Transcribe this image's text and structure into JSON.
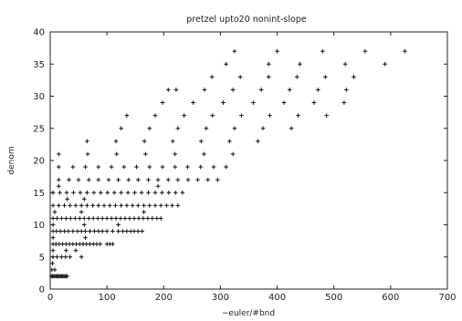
{
  "chart_data": {
    "type": "scatter",
    "title": "pretzel upto20 nonint-slope",
    "xlabel": "−euler/#bnd",
    "ylabel": "denom",
    "xlim": [
      0,
      700
    ],
    "ylim": [
      0,
      40
    ],
    "xticks": [
      0,
      100,
      200,
      300,
      400,
      500,
      600,
      700
    ],
    "yticks": [
      0,
      5,
      10,
      15,
      20,
      25,
      30,
      35,
      40
    ],
    "xtick_labels": [
      "0",
      "100",
      "200",
      "300",
      "400",
      "500",
      "600",
      "700"
    ],
    "ytick_labels": [
      "0",
      "5",
      "10",
      "15",
      "20",
      "25",
      "30",
      "35",
      "40"
    ],
    "marker": "+",
    "grid": false,
    "series": [
      {
        "points": [
          [
            2,
            2
          ],
          [
            4,
            2
          ],
          [
            6,
            2
          ],
          [
            8,
            2
          ],
          [
            10,
            2
          ],
          [
            12,
            2
          ],
          [
            14,
            2
          ],
          [
            16,
            2
          ],
          [
            18,
            2
          ],
          [
            20,
            2
          ],
          [
            22,
            2
          ],
          [
            24,
            2
          ],
          [
            26,
            2
          ],
          [
            28,
            2
          ],
          [
            30,
            2
          ],
          [
            3,
            3
          ],
          [
            8,
            3
          ],
          [
            4,
            4
          ],
          [
            5,
            5
          ],
          [
            12,
            5
          ],
          [
            20,
            5
          ],
          [
            27,
            5
          ],
          [
            35,
            5
          ],
          [
            55,
            5
          ],
          [
            5,
            6
          ],
          [
            28,
            6
          ],
          [
            45,
            6
          ],
          [
            5,
            7
          ],
          [
            10,
            7
          ],
          [
            16,
            7
          ],
          [
            22,
            7
          ],
          [
            28,
            7
          ],
          [
            34,
            7
          ],
          [
            40,
            7
          ],
          [
            46,
            7
          ],
          [
            52,
            7
          ],
          [
            58,
            7
          ],
          [
            64,
            7
          ],
          [
            70,
            7
          ],
          [
            76,
            7
          ],
          [
            82,
            7
          ],
          [
            88,
            7
          ],
          [
            100,
            7
          ],
          [
            105,
            7
          ],
          [
            110,
            7
          ],
          [
            5,
            8
          ],
          [
            62,
            8
          ],
          [
            5,
            9
          ],
          [
            11,
            9
          ],
          [
            18,
            9
          ],
          [
            25,
            9
          ],
          [
            32,
            9
          ],
          [
            40,
            9
          ],
          [
            48,
            9
          ],
          [
            55,
            9
          ],
          [
            62,
            9
          ],
          [
            70,
            9
          ],
          [
            78,
            9
          ],
          [
            85,
            9
          ],
          [
            92,
            9
          ],
          [
            100,
            9
          ],
          [
            110,
            9
          ],
          [
            120,
            9
          ],
          [
            128,
            9
          ],
          [
            135,
            9
          ],
          [
            142,
            9
          ],
          [
            148,
            9
          ],
          [
            155,
            9
          ],
          [
            162,
            9
          ],
          [
            5,
            10
          ],
          [
            60,
            10
          ],
          [
            120,
            10
          ],
          [
            5,
            11
          ],
          [
            12,
            11
          ],
          [
            20,
            11
          ],
          [
            28,
            11
          ],
          [
            36,
            11
          ],
          [
            44,
            11
          ],
          [
            52,
            11
          ],
          [
            60,
            11
          ],
          [
            68,
            11
          ],
          [
            76,
            11
          ],
          [
            84,
            11
          ],
          [
            92,
            11
          ],
          [
            100,
            11
          ],
          [
            108,
            11
          ],
          [
            116,
            11
          ],
          [
            124,
            11
          ],
          [
            132,
            11
          ],
          [
            140,
            11
          ],
          [
            148,
            11
          ],
          [
            156,
            11
          ],
          [
            164,
            11
          ],
          [
            172,
            11
          ],
          [
            180,
            11
          ],
          [
            188,
            11
          ],
          [
            195,
            11
          ],
          [
            8,
            12
          ],
          [
            55,
            12
          ],
          [
            165,
            12
          ],
          [
            5,
            13
          ],
          [
            15,
            13
          ],
          [
            25,
            13
          ],
          [
            35,
            13
          ],
          [
            45,
            13
          ],
          [
            55,
            13
          ],
          [
            65,
            13
          ],
          [
            75,
            13
          ],
          [
            85,
            13
          ],
          [
            95,
            13
          ],
          [
            105,
            13
          ],
          [
            115,
            13
          ],
          [
            125,
            13
          ],
          [
            135,
            13
          ],
          [
            145,
            13
          ],
          [
            155,
            13
          ],
          [
            165,
            13
          ],
          [
            175,
            13
          ],
          [
            185,
            13
          ],
          [
            195,
            13
          ],
          [
            205,
            13
          ],
          [
            215,
            13
          ],
          [
            225,
            13
          ],
          [
            30,
            14
          ],
          [
            60,
            14
          ],
          [
            5,
            15
          ],
          [
            17,
            15
          ],
          [
            29,
            15
          ],
          [
            41,
            15
          ],
          [
            53,
            15
          ],
          [
            65,
            15
          ],
          [
            77,
            15
          ],
          [
            89,
            15
          ],
          [
            101,
            15
          ],
          [
            113,
            15
          ],
          [
            125,
            15
          ],
          [
            137,
            15
          ],
          [
            149,
            15
          ],
          [
            161,
            15
          ],
          [
            173,
            15
          ],
          [
            185,
            15
          ],
          [
            197,
            15
          ],
          [
            209,
            15
          ],
          [
            221,
            15
          ],
          [
            233,
            15
          ],
          [
            15,
            16
          ],
          [
            190,
            16
          ],
          [
            15,
            17
          ],
          [
            33,
            17
          ],
          [
            50,
            17
          ],
          [
            68,
            17
          ],
          [
            85,
            17
          ],
          [
            103,
            17
          ],
          [
            120,
            17
          ],
          [
            138,
            17
          ],
          [
            155,
            17
          ],
          [
            173,
            17
          ],
          [
            190,
            17
          ],
          [
            208,
            17
          ],
          [
            225,
            17
          ],
          [
            243,
            17
          ],
          [
            260,
            17
          ],
          [
            278,
            17
          ],
          [
            295,
            17
          ],
          [
            15,
            19
          ],
          [
            40,
            19
          ],
          [
            62,
            19
          ],
          [
            85,
            19
          ],
          [
            108,
            19
          ],
          [
            130,
            19
          ],
          [
            152,
            19
          ],
          [
            175,
            19
          ],
          [
            198,
            19
          ],
          [
            220,
            19
          ],
          [
            242,
            19
          ],
          [
            265,
            19
          ],
          [
            288,
            19
          ],
          [
            310,
            19
          ],
          [
            15,
            21
          ],
          [
            66,
            21
          ],
          [
            117,
            21
          ],
          [
            168,
            21
          ],
          [
            220,
            21
          ],
          [
            271,
            21
          ],
          [
            322,
            21
          ],
          [
            65,
            23
          ],
          [
            116,
            23
          ],
          [
            166,
            23
          ],
          [
            216,
            23
          ],
          [
            266,
            23
          ],
          [
            316,
            23
          ],
          [
            366,
            23
          ],
          [
            125,
            25
          ],
          [
            175,
            25
          ],
          [
            225,
            25
          ],
          [
            275,
            25
          ],
          [
            325,
            25
          ],
          [
            375,
            25
          ],
          [
            425,
            25
          ],
          [
            135,
            27
          ],
          [
            185,
            27
          ],
          [
            236,
            27
          ],
          [
            286,
            27
          ],
          [
            337,
            27
          ],
          [
            387,
            27
          ],
          [
            437,
            27
          ],
          [
            487,
            27
          ],
          [
            198,
            29
          ],
          [
            252,
            29
          ],
          [
            305,
            29
          ],
          [
            358,
            29
          ],
          [
            412,
            29
          ],
          [
            465,
            29
          ],
          [
            518,
            29
          ],
          [
            208,
            31
          ],
          [
            222,
            31
          ],
          [
            272,
            31
          ],
          [
            322,
            31
          ],
          [
            372,
            31
          ],
          [
            422,
            31
          ],
          [
            472,
            31
          ],
          [
            522,
            31
          ],
          [
            285,
            33
          ],
          [
            335,
            33
          ],
          [
            385,
            33
          ],
          [
            435,
            33
          ],
          [
            485,
            33
          ],
          [
            535,
            33
          ],
          [
            310,
            35
          ],
          [
            385,
            35
          ],
          [
            440,
            35
          ],
          [
            520,
            35
          ],
          [
            590,
            35
          ],
          [
            325,
            37
          ],
          [
            400,
            37
          ],
          [
            480,
            37
          ],
          [
            555,
            37
          ],
          [
            625,
            37
          ]
        ]
      }
    ]
  }
}
